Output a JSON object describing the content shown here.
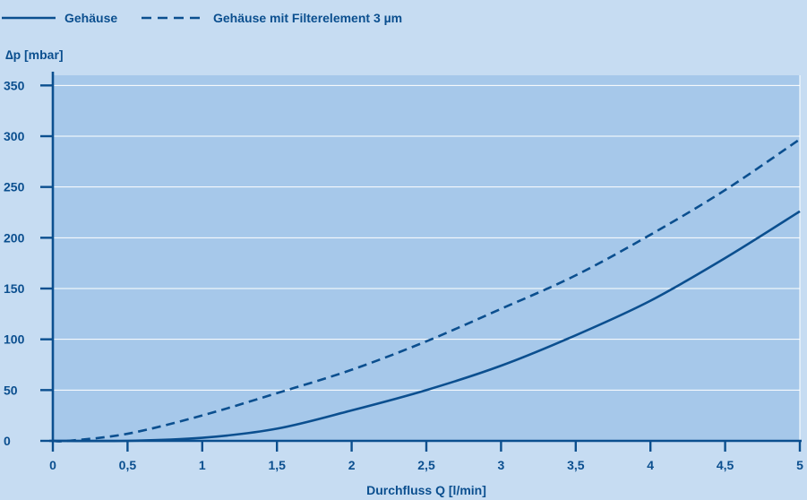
{
  "chart_data": {
    "type": "line",
    "title": "",
    "xlabel": "Durchfluss Q [l/min]",
    "ylabel": "∆p [mbar]",
    "xlim": [
      0,
      5
    ],
    "ylim": [
      0,
      360
    ],
    "x_ticks": [
      0,
      0.5,
      1,
      1.5,
      2,
      2.5,
      3,
      3.5,
      4,
      4.5,
      5
    ],
    "x_tick_labels": [
      "0",
      "0,5",
      "1",
      "1,5",
      "2",
      "2,5",
      "3",
      "3,5",
      "4",
      "4,5",
      "5"
    ],
    "y_ticks": [
      0,
      50,
      100,
      150,
      200,
      250,
      300,
      350
    ],
    "y_tick_labels": [
      "0",
      "50",
      "100",
      "150",
      "200",
      "250",
      "300",
      "350"
    ],
    "grid": "horizontal",
    "legend_position": "top-left",
    "colors": {
      "page_background": "#c6dcf2",
      "plot_background": "#a6c8ea",
      "line": "#0b4f8f",
      "grid": "#ffffff"
    },
    "series": [
      {
        "name": "Gehäuse",
        "style": "solid",
        "x": [
          0,
          0.5,
          1,
          1.5,
          2,
          2.5,
          3,
          3.5,
          4,
          4.5,
          5
        ],
        "y": [
          0,
          0,
          3,
          12,
          30,
          50,
          74,
          104,
          138,
          180,
          226
        ]
      },
      {
        "name": "Gehäuse mit Filterelement 3 µm",
        "style": "dashed",
        "x": [
          0,
          0.1,
          0.5,
          1,
          1.5,
          2,
          2.5,
          3,
          3.5,
          4,
          4.5,
          5
        ],
        "y": [
          0,
          0,
          7,
          25,
          47,
          70,
          98,
          130,
          163,
          203,
          247,
          297
        ]
      }
    ]
  }
}
